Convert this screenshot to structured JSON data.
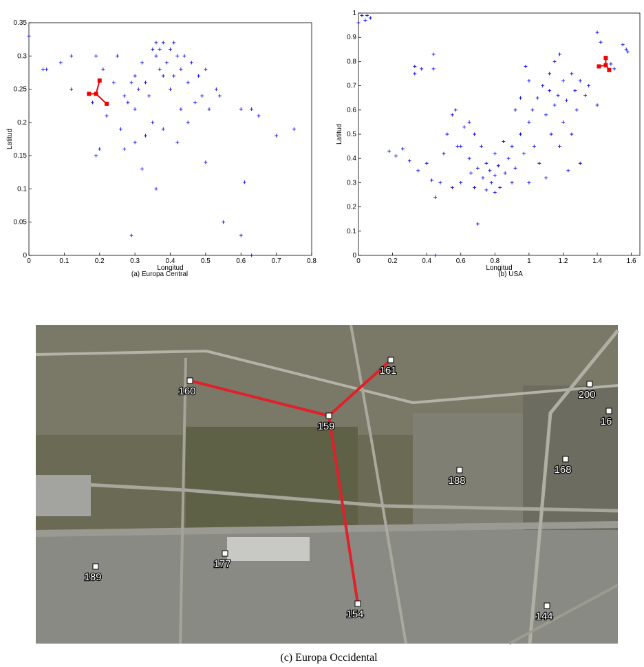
{
  "chart_data": [
    {
      "type": "scatter",
      "caption": "(a) Europa Central",
      "x_label": "Longitud",
      "y_label": "Latitud",
      "xlim": [
        0,
        0.8
      ],
      "ylim": [
        0,
        0.35
      ],
      "xticks": [
        0,
        0.1,
        0.2,
        0.3,
        0.4,
        0.5,
        0.6,
        0.7,
        0.8
      ],
      "yticks": [
        0,
        0.05,
        0.1,
        0.15,
        0.2,
        0.25,
        0.3,
        0.35
      ],
      "series": [
        {
          "color": "#0000ff",
          "marker": "+",
          "x": [
            0,
            0.04,
            0.05,
            0.09,
            0.12,
            0.12,
            0.19,
            0.21,
            0.22,
            0.24,
            0.25,
            0.27,
            0.28,
            0.29,
            0.3,
            0.3,
            0.31,
            0.32,
            0.33,
            0.34,
            0.35,
            0.36,
            0.36,
            0.37,
            0.37,
            0.38,
            0.38,
            0.39,
            0.4,
            0.4,
            0.41,
            0.41,
            0.42,
            0.43,
            0.43,
            0.44,
            0.45,
            0.46,
            0.47,
            0.48,
            0.49,
            0.5,
            0.51,
            0.53,
            0.54,
            0.6,
            0.63,
            0.65,
            0.7,
            0.75,
            0.61,
            0.6,
            0.63,
            0.55,
            0.5,
            0.36,
            0.29,
            0.32,
            0.19,
            0.2,
            0.27,
            0.3,
            0.35,
            0.33,
            0.38,
            0.42,
            0.45,
            0.26,
            0.18
          ],
          "values": [
            0.33,
            0.28,
            0.28,
            0.29,
            0.3,
            0.25,
            0.3,
            0.28,
            0.21,
            0.26,
            0.3,
            0.24,
            0.23,
            0.26,
            0.27,
            0.22,
            0.25,
            0.29,
            0.26,
            0.24,
            0.31,
            0.32,
            0.3,
            0.31,
            0.28,
            0.32,
            0.27,
            0.29,
            0.25,
            0.31,
            0.32,
            0.27,
            0.3,
            0.22,
            0.28,
            0.3,
            0.26,
            0.29,
            0.23,
            0.27,
            0.24,
            0.28,
            0.22,
            0.25,
            0.24,
            0.22,
            0.22,
            0.21,
            0.18,
            0.19,
            0.11,
            0.03,
            0,
            0.05,
            0.14,
            0.1,
            0.03,
            0.13,
            0.15,
            0.16,
            0.16,
            0.17,
            0.2,
            0.18,
            0.19,
            0.17,
            0.2,
            0.19,
            0.23
          ]
        },
        {
          "color": "#ee0000",
          "marker": "square",
          "x": [
            0.19,
            0.17,
            0.2,
            0.22
          ],
          "values": [
            0.243,
            0.243,
            0.263,
            0.228
          ]
        }
      ]
    },
    {
      "type": "scatter",
      "caption": "(b) USA",
      "x_label": "Longitud",
      "y_label": "Latitud",
      "xlim": [
        0,
        1.65
      ],
      "ylim": [
        0,
        1
      ],
      "xticks": [
        0,
        0.2,
        0.4,
        0.6,
        0.8,
        1,
        1.2,
        1.4,
        1.6
      ],
      "yticks": [
        0,
        0.1,
        0.2,
        0.3,
        0.4,
        0.5,
        0.6,
        0.7,
        0.8,
        0.9,
        1
      ],
      "series": [
        {
          "color": "#0000ff",
          "marker": "+",
          "x": [
            0.02,
            0.05,
            0.07,
            0.04,
            0,
            0.33,
            0.33,
            0.37,
            0.44,
            0.44,
            0.18,
            0.22,
            0.26,
            0.3,
            0.35,
            0.4,
            0.43,
            0.45,
            0.48,
            0.5,
            0.52,
            0.55,
            0.57,
            0.6,
            0.6,
            0.62,
            0.65,
            0.66,
            0.68,
            0.7,
            0.7,
            0.72,
            0.73,
            0.75,
            0.75,
            0.77,
            0.78,
            0.8,
            0.8,
            0.82,
            0.83,
            0.85,
            0.86,
            0.88,
            0.9,
            0.9,
            0.92,
            0.95,
            0.97,
            0.98,
            1,
            1,
            1.02,
            1.03,
            1.05,
            1.06,
            1.08,
            1.1,
            1.1,
            1.12,
            1.13,
            1.15,
            1.15,
            1.17,
            1.18,
            1.2,
            1.2,
            1.22,
            1.23,
            1.25,
            1.25,
            1.27,
            1.28,
            1.3,
            1.3,
            1.33,
            1.35,
            1.4,
            1.42,
            1.48,
            1.5,
            1.55,
            1.57,
            1.58,
            1.4,
            0.92,
            0.95,
            0.65,
            0.58,
            0.8,
            1,
            0.55,
            0.68,
            1.12,
            1.18,
            0.45
          ],
          "values": [
            0.99,
            0.99,
            0.98,
            0.97,
            0.96,
            0.78,
            0.75,
            0.77,
            0.83,
            0.77,
            0.43,
            0.41,
            0.44,
            0.39,
            0.35,
            0.38,
            0.31,
            0.24,
            0.3,
            0.42,
            0.5,
            0.58,
            0.6,
            0.45,
            0.3,
            0.53,
            0.4,
            0.34,
            0.28,
            0.36,
            0.13,
            0.45,
            0.32,
            0.38,
            0.27,
            0.35,
            0.3,
            0.33,
            0.42,
            0.37,
            0.28,
            0.47,
            0.34,
            0.4,
            0.3,
            0.45,
            0.36,
            0.5,
            0.42,
            0.78,
            0.72,
            0.55,
            0.6,
            0.45,
            0.65,
            0.38,
            0.7,
            0.58,
            0.32,
            0.68,
            0.5,
            0.8,
            0.62,
            0.66,
            0.45,
            0.72,
            0.55,
            0.64,
            0.35,
            0.75,
            0.5,
            0.68,
            0.6,
            0.72,
            0.38,
            0.66,
            0.7,
            0.92,
            0.88,
            0.79,
            0.77,
            0.87,
            0.85,
            0.84,
            0.62,
            0.6,
            0.65,
            0.55,
            0.45,
            0.26,
            0.3,
            0.28,
            0.5,
            0.75,
            0.83,
            0
          ]
        },
        {
          "color": "#ee0000",
          "marker": "square",
          "x": [
            1.45,
            1.41,
            1.45,
            1.47
          ],
          "values": [
            0.785,
            0.78,
            0.815,
            0.765
          ]
        }
      ]
    }
  ],
  "map": {
    "caption": "(c) Europa Occidental",
    "nodes": [
      "160",
      "159",
      "161",
      "188",
      "168",
      "200",
      "16",
      "177",
      "189",
      "154",
      "144"
    ]
  }
}
